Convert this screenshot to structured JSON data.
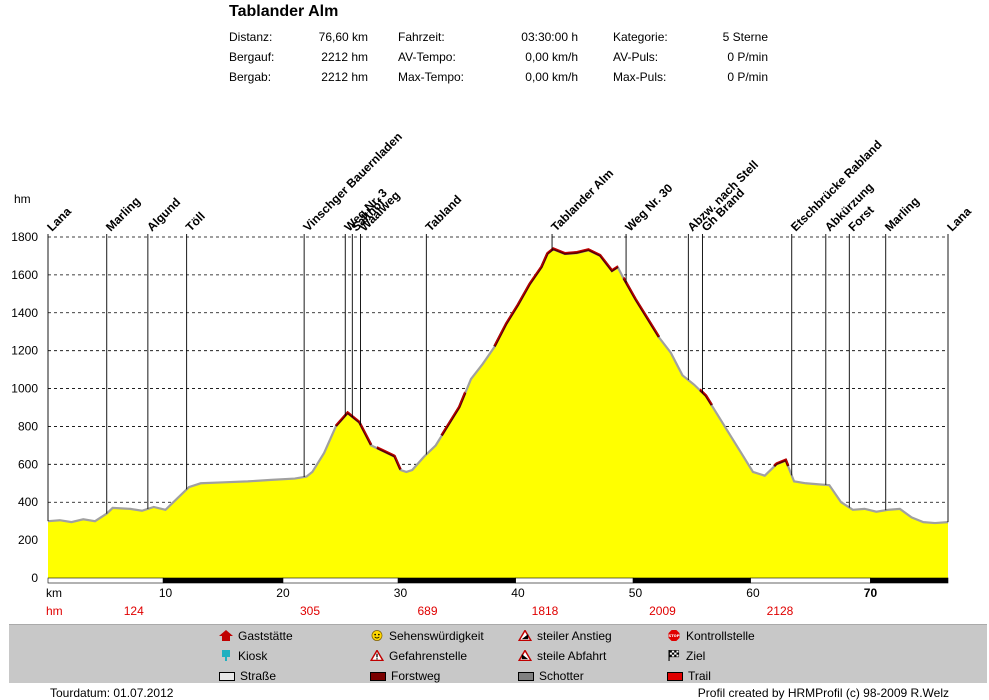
{
  "header": {
    "title": "Tablander Alm",
    "stats": [
      {
        "label": "Distanz:",
        "value": "76,60 km"
      },
      {
        "label": "Bergauf:",
        "value": "2212 hm"
      },
      {
        "label": "Bergab:",
        "value": "2212 hm"
      },
      {
        "label": "Fahrzeit:",
        "value": "03:30:00 h"
      },
      {
        "label": "AV-Tempo:",
        "value": "0,00 km/h"
      },
      {
        "label": "Max-Tempo:",
        "value": "0,00 km/h"
      },
      {
        "label": "Kategorie:",
        "value": "5 Sterne"
      },
      {
        "label": "AV-Puls:",
        "value": "0 P/min"
      },
      {
        "label": "Max-Puls:",
        "value": "0 P/min"
      }
    ]
  },
  "chart_data": {
    "type": "area",
    "ylabel": "hm",
    "xlabel": "km",
    "xlim": [
      0,
      76.6
    ],
    "ylim": [
      0,
      1800
    ],
    "yticks": [
      0,
      200,
      400,
      600,
      800,
      1000,
      1200,
      1400,
      1600,
      1800
    ],
    "xticks": [
      10,
      20,
      30,
      40,
      50,
      60,
      70
    ],
    "hm_row_label": "hm",
    "hm_row": [
      {
        "km": 5,
        "label": "124"
      },
      {
        "km": 20,
        "label": "305"
      },
      {
        "km": 30,
        "label": "689"
      },
      {
        "km": 40,
        "label": "1818"
      },
      {
        "km": 50,
        "label": "2009"
      },
      {
        "km": 60,
        "label": "2128"
      }
    ],
    "profile": [
      [
        0,
        300
      ],
      [
        1,
        305
      ],
      [
        2,
        295
      ],
      [
        3,
        310
      ],
      [
        4,
        300
      ],
      [
        5,
        340
      ],
      [
        5.5,
        370
      ],
      [
        7,
        365
      ],
      [
        8,
        355
      ],
      [
        9,
        375
      ],
      [
        10,
        360
      ],
      [
        11,
        420
      ],
      [
        12,
        480
      ],
      [
        13,
        500
      ],
      [
        15,
        505
      ],
      [
        17,
        510
      ],
      [
        19,
        518
      ],
      [
        21,
        525
      ],
      [
        22,
        535
      ],
      [
        22.5,
        560
      ],
      [
        23.5,
        660
      ],
      [
        24.5,
        800
      ],
      [
        25.5,
        870
      ],
      [
        26.5,
        820
      ],
      [
        27.5,
        700
      ],
      [
        28.5,
        670
      ],
      [
        29.5,
        640
      ],
      [
        30,
        570
      ],
      [
        30.5,
        560
      ],
      [
        31,
        570
      ],
      [
        32,
        640
      ],
      [
        33,
        700
      ],
      [
        34,
        800
      ],
      [
        35,
        900
      ],
      [
        36,
        1050
      ],
      [
        37,
        1130
      ],
      [
        38,
        1220
      ],
      [
        39,
        1340
      ],
      [
        40,
        1440
      ],
      [
        41,
        1550
      ],
      [
        42,
        1640
      ],
      [
        42.5,
        1710
      ],
      [
        43,
        1735
      ],
      [
        44,
        1710
      ],
      [
        45,
        1715
      ],
      [
        46,
        1730
      ],
      [
        47,
        1700
      ],
      [
        48,
        1620
      ],
      [
        48.5,
        1640
      ],
      [
        49,
        1580
      ],
      [
        50,
        1470
      ],
      [
        51,
        1370
      ],
      [
        52,
        1270
      ],
      [
        53,
        1190
      ],
      [
        54,
        1070
      ],
      [
        55,
        1020
      ],
      [
        56,
        960
      ],
      [
        57,
        860
      ],
      [
        58,
        760
      ],
      [
        59,
        660
      ],
      [
        60,
        560
      ],
      [
        61,
        540
      ],
      [
        62,
        600
      ],
      [
        62.8,
        620
      ],
      [
        63.5,
        510
      ],
      [
        64.5,
        500
      ],
      [
        65.5,
        495
      ],
      [
        66.5,
        490
      ],
      [
        67.5,
        400
      ],
      [
        68.5,
        360
      ],
      [
        69.5,
        365
      ],
      [
        70.5,
        350
      ],
      [
        71.5,
        360
      ],
      [
        72.5,
        365
      ],
      [
        73.5,
        320
      ],
      [
        74.5,
        295
      ],
      [
        75.5,
        290
      ],
      [
        76.6,
        295
      ]
    ],
    "steep_segments": [
      [
        24.5,
        27.5
      ],
      [
        28,
        30
      ],
      [
        33.5,
        35.5
      ],
      [
        38,
        48.5
      ],
      [
        49,
        52
      ],
      [
        55.5,
        56.5
      ],
      [
        61.8,
        63
      ]
    ],
    "waypoints": [
      {
        "km": 0,
        "label": "Lana"
      },
      {
        "km": 5,
        "label": "Marling"
      },
      {
        "km": 8.5,
        "label": "Algund"
      },
      {
        "km": 11.8,
        "label": "Töll"
      },
      {
        "km": 21.8,
        "label": "Vinschger Bauernladen"
      },
      {
        "km": 25.3,
        "label": "Weg Nr. 3"
      },
      {
        "km": 25.9,
        "label": "Salthof"
      },
      {
        "km": 26.6,
        "label": "Waalweg"
      },
      {
        "km": 32.2,
        "label": "Tabland"
      },
      {
        "km": 42.9,
        "label": "Tablander Alm"
      },
      {
        "km": 49.2,
        "label": "Weg Nr. 30"
      },
      {
        "km": 54.5,
        "label": "Abzw. nach Stell"
      },
      {
        "km": 55.7,
        "label": "Gh Brand"
      },
      {
        "km": 63.3,
        "label": "Etschbrücke Rabland"
      },
      {
        "km": 66.2,
        "label": "Abkürzung"
      },
      {
        "km": 68.2,
        "label": "Forst"
      },
      {
        "km": 71.3,
        "label": "Marling"
      },
      {
        "km": 76.6,
        "label": "Lana"
      }
    ],
    "surface_bar": [
      [
        0,
        9.8,
        "white"
      ],
      [
        9.8,
        20,
        "black"
      ],
      [
        20,
        29.8,
        "white"
      ],
      [
        29.8,
        39.8,
        "black"
      ],
      [
        39.8,
        49.8,
        "white"
      ],
      [
        49.8,
        59.8,
        "black"
      ],
      [
        59.8,
        70,
        "white"
      ],
      [
        70,
        76.6,
        "black"
      ]
    ]
  },
  "legend": [
    {
      "icon": "house-icon",
      "label": "Gaststätte"
    },
    {
      "icon": "kiosk-icon",
      "label": "Kiosk"
    },
    {
      "icon": "road-swatch-icon",
      "label": "Straße",
      "color": "#e8e8e8"
    },
    {
      "icon": "smiley-icon",
      "label": "Sehenswürdigkeit"
    },
    {
      "icon": "warning-icon",
      "label": "Gefahrenstelle"
    },
    {
      "icon": "forest-road-swatch-icon",
      "label": "Forstweg",
      "color": "#7a0000"
    },
    {
      "icon": "steep-up-icon",
      "label": "steiler Anstieg"
    },
    {
      "icon": "steep-down-icon",
      "label": "steile Abfahrt"
    },
    {
      "icon": "gravel-swatch-icon",
      "label": "Schotter",
      "color": "#808080"
    },
    {
      "icon": "stop-icon",
      "label": "Kontrollstelle"
    },
    {
      "icon": "finish-flag-icon",
      "label": "Ziel"
    },
    {
      "icon": "trail-swatch-icon",
      "label": "Trail",
      "color": "#e00000"
    }
  ],
  "footer": {
    "left": "Tourdatum: 01.07.2012",
    "right": "Profil created by HRMProfil (c) 98-2009 R.Welz"
  },
  "colors": {
    "fill": "#ffff00",
    "outline": "#a0a0a0",
    "steep": "#c00000",
    "axis_km": "#000000",
    "axis_hm": "#e00000"
  }
}
